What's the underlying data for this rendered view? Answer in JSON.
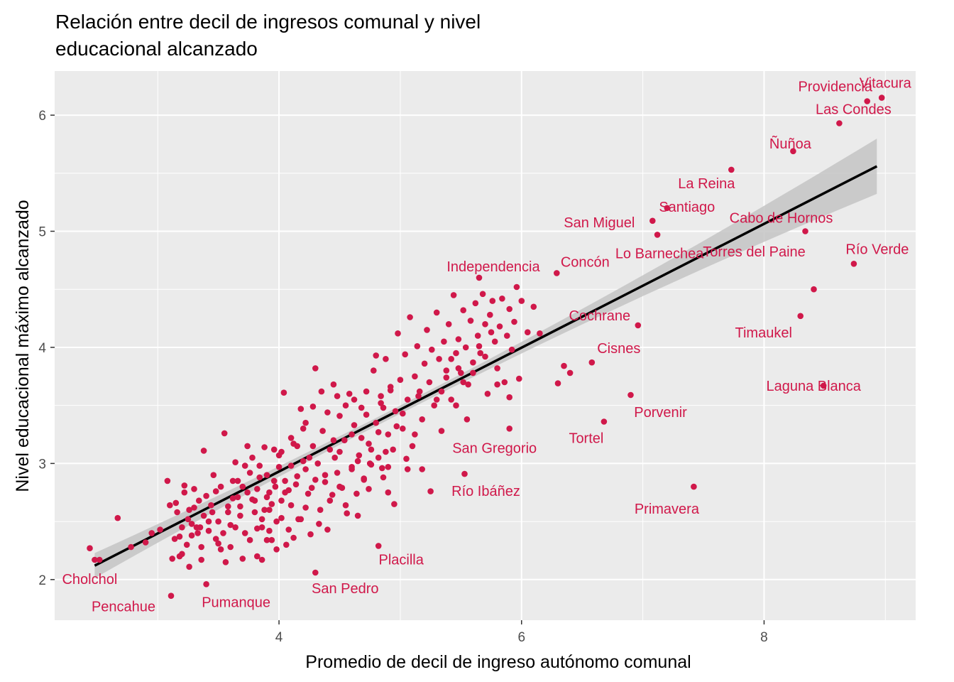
{
  "chart_data": {
    "type": "scatter",
    "title_lines": [
      "Relación entre decil de ingresos comunal y nivel",
      "educacional alcanzado"
    ],
    "xlabel": "Promedio de decil de ingreso autónomo comunal",
    "ylabel": "Nivel educacional máximo alcanzado",
    "xlim": [
      2.15,
      9.25
    ],
    "ylim": [
      1.65,
      6.38
    ],
    "x_ticks": [
      4,
      6,
      8
    ],
    "y_ticks": [
      2,
      3,
      4,
      5,
      6
    ],
    "grid": true,
    "point_color": "#d0184a",
    "panel_color": "#ebebeb",
    "trend_line": {
      "x": [
        2.48,
        8.93
      ],
      "y": [
        2.12,
        5.56
      ],
      "color": "#000000",
      "band_color": "#c4c4c4"
    },
    "labeled_points": [
      {
        "name": "Vitacura",
        "x": 8.97,
        "y": 6.15
      },
      {
        "name": "Providencia",
        "x": 8.85,
        "y": 6.12
      },
      {
        "name": "Las Condes",
        "x": 8.62,
        "y": 5.93
      },
      {
        "name": "Ñuñoa",
        "x": 8.24,
        "y": 5.69
      },
      {
        "name": "La Reina",
        "x": 7.73,
        "y": 5.53
      },
      {
        "name": "Santiago",
        "x": 7.2,
        "y": 5.2
      },
      {
        "name": "San Miguel",
        "x": 7.08,
        "y": 5.09
      },
      {
        "name": "Cabo de Hornos",
        "x": 8.34,
        "y": 5.0
      },
      {
        "name": "Lo Barnechea",
        "x": 7.12,
        "y": 4.97
      },
      {
        "name": "Río Verde",
        "x": 8.74,
        "y": 4.72
      },
      {
        "name": "Independencia",
        "x": 5.65,
        "y": 4.6
      },
      {
        "name": "Concón",
        "x": 6.29,
        "y": 4.64
      },
      {
        "name": "Torres del Paine",
        "x": 8.41,
        "y": 4.5
      },
      {
        "name": "Timaukel",
        "x": 8.3,
        "y": 4.27
      },
      {
        "name": "Cochrane",
        "x": 6.96,
        "y": 4.19
      },
      {
        "name": "Cisnes",
        "x": 6.58,
        "y": 3.87
      },
      {
        "name": "Laguna Blanca",
        "x": 8.49,
        "y": 3.67
      },
      {
        "name": "Porvenir",
        "x": 6.9,
        "y": 3.59
      },
      {
        "name": "Tortel",
        "x": 6.68,
        "y": 3.36
      },
      {
        "name": "San Gregorio",
        "x": 5.9,
        "y": 3.3
      },
      {
        "name": "Río Ibáñez",
        "x": 5.53,
        "y": 2.91
      },
      {
        "name": "Primavera",
        "x": 7.42,
        "y": 2.8
      },
      {
        "name": "Placilla",
        "x": 4.82,
        "y": 2.29
      },
      {
        "name": "San Pedro",
        "x": 4.3,
        "y": 2.06
      },
      {
        "name": "Cholchol",
        "x": 2.48,
        "y": 2.17
      },
      {
        "name": "Pumanque",
        "x": 3.4,
        "y": 1.96
      },
      {
        "name": "Pencahue",
        "x": 3.11,
        "y": 1.86
      }
    ],
    "points": [
      [
        2.44,
        2.27
      ],
      [
        2.52,
        2.17
      ],
      [
        2.67,
        2.53
      ],
      [
        2.78,
        2.28
      ],
      [
        2.9,
        2.32
      ],
      [
        2.95,
        2.4
      ],
      [
        3.02,
        2.43
      ],
      [
        3.08,
        2.85
      ],
      [
        3.1,
        2.64
      ],
      [
        3.15,
        2.66
      ],
      [
        3.18,
        2.37
      ],
      [
        3.22,
        2.81
      ],
      [
        3.25,
        2.52
      ],
      [
        3.28,
        2.48
      ],
      [
        3.3,
        2.62
      ],
      [
        3.33,
        2.4
      ],
      [
        3.12,
        2.18
      ],
      [
        3.2,
        2.22
      ],
      [
        3.26,
        2.11
      ],
      [
        3.35,
        2.45
      ],
      [
        3.36,
        2.17
      ],
      [
        3.38,
        3.11
      ],
      [
        3.42,
        2.5
      ],
      [
        3.45,
        2.58
      ],
      [
        3.48,
        2.76
      ],
      [
        3.5,
        2.31
      ],
      [
        3.52,
        2.26
      ],
      [
        3.55,
        3.26
      ],
      [
        3.58,
        2.63
      ],
      [
        3.6,
        2.47
      ],
      [
        3.62,
        2.85
      ],
      [
        3.64,
        3.01
      ],
      [
        3.66,
        2.71
      ],
      [
        3.68,
        2.55
      ],
      [
        3.7,
        2.8
      ],
      [
        3.72,
        2.4
      ],
      [
        3.74,
        3.15
      ],
      [
        3.76,
        2.92
      ],
      [
        3.78,
        2.69
      ],
      [
        3.8,
        2.58
      ],
      [
        3.82,
        2.44
      ],
      [
        3.84,
        2.98
      ],
      [
        3.86,
        2.17
      ],
      [
        3.88,
        2.6
      ],
      [
        3.9,
        2.9
      ],
      [
        3.92,
        2.75
      ],
      [
        3.94,
        2.34
      ],
      [
        3.96,
        2.85
      ],
      [
        3.98,
        2.5
      ],
      [
        4.0,
        3.07
      ],
      [
        4.02,
        2.68
      ],
      [
        4.04,
        3.61
      ],
      [
        4.06,
        2.3
      ],
      [
        4.08,
        2.77
      ],
      [
        4.1,
        2.64
      ],
      [
        4.12,
        3.17
      ],
      [
        4.14,
        2.82
      ],
      [
        4.16,
        2.52
      ],
      [
        4.18,
        3.47
      ],
      [
        4.2,
        3.02
      ],
      [
        4.22,
        2.95
      ],
      [
        4.24,
        2.74
      ],
      [
        4.26,
        2.39
      ],
      [
        4.28,
        3.15
      ],
      [
        4.3,
        2.86
      ],
      [
        4.32,
        3.0
      ],
      [
        4.34,
        2.6
      ],
      [
        4.36,
        3.28
      ],
      [
        4.38,
        2.84
      ],
      [
        4.4,
        2.43
      ],
      [
        4.42,
        3.12
      ],
      [
        4.44,
        2.73
      ],
      [
        4.46,
        3.05
      ],
      [
        4.48,
        2.92
      ],
      [
        4.5,
        3.41
      ],
      [
        4.52,
        2.79
      ],
      [
        4.54,
        3.2
      ],
      [
        4.56,
        2.57
      ],
      [
        4.58,
        3.6
      ],
      [
        4.6,
        2.95
      ],
      [
        4.62,
        3.33
      ],
      [
        4.64,
        2.74
      ],
      [
        4.66,
        3.07
      ],
      [
        4.68,
        3.48
      ],
      [
        4.7,
        2.87
      ],
      [
        4.72,
        3.62
      ],
      [
        4.74,
        3.17
      ],
      [
        4.76,
        2.99
      ],
      [
        4.78,
        3.8
      ],
      [
        4.8,
        3.35
      ],
      [
        4.82,
        3.05
      ],
      [
        4.84,
        3.58
      ],
      [
        4.86,
        2.88
      ],
      [
        4.88,
        3.9
      ],
      [
        4.9,
        3.25
      ],
      [
        4.92,
        3.66
      ],
      [
        4.94,
        3.12
      ],
      [
        4.96,
        3.45
      ],
      [
        4.98,
        4.12
      ],
      [
        5.0,
        3.72
      ],
      [
        5.02,
        3.3
      ],
      [
        5.04,
        3.94
      ],
      [
        5.06,
        3.55
      ],
      [
        5.08,
        4.26
      ],
      [
        5.1,
        3.15
      ],
      [
        5.12,
        3.75
      ],
      [
        5.14,
        4.01
      ],
      [
        5.16,
        3.62
      ],
      [
        5.18,
        3.38
      ],
      [
        5.2,
        3.86
      ],
      [
        5.22,
        4.15
      ],
      [
        5.24,
        3.7
      ],
      [
        5.26,
        3.98
      ],
      [
        5.28,
        3.5
      ],
      [
        5.3,
        4.3
      ],
      [
        5.32,
        3.9
      ],
      [
        5.34,
        3.62
      ],
      [
        5.36,
        4.05
      ],
      [
        5.38,
        3.8
      ],
      [
        5.4,
        4.2
      ],
      [
        5.42,
        3.55
      ],
      [
        5.44,
        4.45
      ],
      [
        5.46,
        3.95
      ],
      [
        5.48,
        4.07
      ],
      [
        5.5,
        3.78
      ],
      [
        5.52,
        4.32
      ],
      [
        5.54,
        4.0
      ],
      [
        5.56,
        3.68
      ],
      [
        5.58,
        4.23
      ],
      [
        5.6,
        3.87
      ],
      [
        5.62,
        4.38
      ],
      [
        5.64,
        4.1
      ],
      [
        5.66,
        3.95
      ],
      [
        5.68,
        4.46
      ],
      [
        5.7,
        4.2
      ],
      [
        5.72,
        3.6
      ],
      [
        5.74,
        4.28
      ],
      [
        5.76,
        4.4
      ],
      [
        5.78,
        4.05
      ],
      [
        5.8,
        3.82
      ],
      [
        5.82,
        4.18
      ],
      [
        5.84,
        4.42
      ],
      [
        5.86,
        3.7
      ],
      [
        5.88,
        4.1
      ],
      [
        5.9,
        4.33
      ],
      [
        5.92,
        3.98
      ],
      [
        5.94,
        4.22
      ],
      [
        5.96,
        4.52
      ],
      [
        5.98,
        3.73
      ],
      [
        6.0,
        4.4
      ],
      [
        6.05,
        4.13
      ],
      [
        6.1,
        4.35
      ],
      [
        6.15,
        4.12
      ],
      [
        6.3,
        3.69
      ],
      [
        6.35,
        3.84
      ],
      [
        6.4,
        3.78
      ],
      [
        5.9,
        3.57
      ],
      [
        5.8,
        3.68
      ],
      [
        5.55,
        3.38
      ],
      [
        5.25,
        2.76
      ],
      [
        5.18,
        2.95
      ],
      [
        4.95,
        2.65
      ],
      [
        4.9,
        2.75
      ],
      [
        4.85,
        2.96
      ],
      [
        4.75,
        3.0
      ],
      [
        4.7,
        2.86
      ],
      [
        4.65,
        2.55
      ],
      [
        4.6,
        2.97
      ],
      [
        4.55,
        2.64
      ],
      [
        4.5,
        2.8
      ],
      [
        4.48,
        3.58
      ],
      [
        4.45,
        3.2
      ],
      [
        4.42,
        2.68
      ],
      [
        4.4,
        3.44
      ],
      [
        4.38,
        2.9
      ],
      [
        4.35,
        3.62
      ],
      [
        4.33,
        2.48
      ],
      [
        4.3,
        3.82
      ],
      [
        4.27,
        2.79
      ],
      [
        4.25,
        3.05
      ],
      [
        4.22,
        2.62
      ],
      [
        4.2,
        3.3
      ],
      [
        4.18,
        2.52
      ],
      [
        4.15,
        2.89
      ],
      [
        4.12,
        2.36
      ],
      [
        4.1,
        3.22
      ],
      [
        4.08,
        2.43
      ],
      [
        4.05,
        2.85
      ],
      [
        4.02,
        2.53
      ],
      [
        4.0,
        2.97
      ],
      [
        3.98,
        2.26
      ],
      [
        3.96,
        3.12
      ],
      [
        3.94,
        2.65
      ],
      [
        3.92,
        2.42
      ],
      [
        3.9,
        2.71
      ],
      [
        3.88,
        3.14
      ],
      [
        3.86,
        2.45
      ],
      [
        3.84,
        2.88
      ],
      [
        3.82,
        2.2
      ],
      [
        3.8,
        2.68
      ],
      [
        3.78,
        3.05
      ],
      [
        3.76,
        2.34
      ],
      [
        3.74,
        2.75
      ],
      [
        3.72,
        2.98
      ],
      [
        3.7,
        2.18
      ],
      [
        3.68,
        2.63
      ],
      [
        3.66,
        2.85
      ],
      [
        3.64,
        2.45
      ],
      [
        3.62,
        2.7
      ],
      [
        3.6,
        2.28
      ],
      [
        3.58,
        2.58
      ],
      [
        3.56,
        2.15
      ],
      [
        3.54,
        2.4
      ],
      [
        3.52,
        2.8
      ],
      [
        3.5,
        2.5
      ],
      [
        3.48,
        2.35
      ],
      [
        3.46,
        2.9
      ],
      [
        3.44,
        2.64
      ],
      [
        3.42,
        2.42
      ],
      [
        3.4,
        2.72
      ],
      [
        3.38,
        2.55
      ],
      [
        3.36,
        2.28
      ],
      [
        3.34,
        2.68
      ],
      [
        3.32,
        2.45
      ],
      [
        3.3,
        2.78
      ],
      [
        3.28,
        2.38
      ],
      [
        3.26,
        2.6
      ],
      [
        3.24,
        2.3
      ],
      [
        3.22,
        2.75
      ],
      [
        3.2,
        2.45
      ],
      [
        3.18,
        2.2
      ],
      [
        3.16,
        2.58
      ],
      [
        3.14,
        2.35
      ],
      [
        3.9,
        2.34
      ],
      [
        4.05,
        2.75
      ],
      [
        4.45,
        3.68
      ],
      [
        4.62,
        3.55
      ],
      [
        4.68,
        3.22
      ],
      [
        4.72,
        3.42
      ],
      [
        4.76,
        3.12
      ],
      [
        4.8,
        3.93
      ],
      [
        4.84,
        3.52
      ],
      [
        4.88,
        3.1
      ],
      [
        4.92,
        3.63
      ],
      [
        5.02,
        3.43
      ],
      [
        5.06,
        2.95
      ],
      [
        5.12,
        3.25
      ],
      [
        5.3,
        3.55
      ],
      [
        5.34,
        3.28
      ],
      [
        5.38,
        3.74
      ],
      [
        5.42,
        3.9
      ],
      [
        5.46,
        3.5
      ],
      [
        5.48,
        3.82
      ],
      [
        5.52,
        3.7
      ],
      [
        5.6,
        3.78
      ],
      [
        5.65,
        4.01
      ],
      [
        5.7,
        3.92
      ],
      [
        5.75,
        4.13
      ],
      [
        4.55,
        3.5
      ],
      [
        4.5,
        3.1
      ],
      [
        4.28,
        3.49
      ],
      [
        4.22,
        3.35
      ],
      [
        4.15,
        3.15
      ],
      [
        4.1,
        2.98
      ],
      [
        4.02,
        3.1
      ],
      [
        3.97,
        2.8
      ],
      [
        3.92,
        2.6
      ],
      [
        3.86,
        2.52
      ],
      [
        3.82,
        2.78
      ],
      [
        4.6,
        3.25
      ],
      [
        4.65,
        3.02
      ],
      [
        4.74,
        2.78
      ],
      [
        4.82,
        3.27
      ],
      [
        4.86,
        3.48
      ],
      [
        4.9,
        2.97
      ],
      [
        4.97,
        3.32
      ],
      [
        5.05,
        3.04
      ],
      [
        5.15,
        3.58
      ]
    ]
  }
}
